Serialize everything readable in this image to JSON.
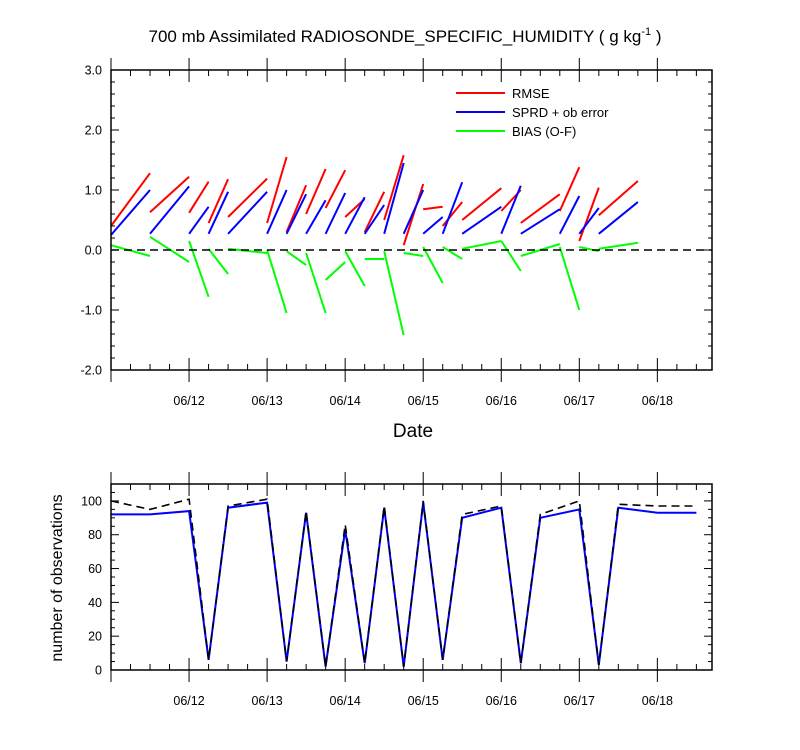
{
  "chart_data": [
    {
      "type": "line",
      "title": "700 mb Assimilated RADIOSONDE_SPECIFIC_HUMIDITY ( g kg",
      "title_superscript": "-1",
      "title_suffix": " )",
      "xlabel": "Date",
      "ylabel": "",
      "xlim": [
        -1.0,
        6.7
      ],
      "ylim": [
        -2.0,
        3.0
      ],
      "yticks": [
        {
          "value": 3.0,
          "label": "3.0"
        },
        {
          "value": 2.0,
          "label": "2.0"
        },
        {
          "value": 1.0,
          "label": "1.0"
        },
        {
          "value": 0.0,
          "label": "0.0"
        },
        {
          "value": -1.0,
          "label": "-1.0"
        },
        {
          "value": -2.0,
          "label": "-2.0"
        }
      ],
      "xticks": [
        {
          "value": 0,
          "label": "06/12"
        },
        {
          "value": 1,
          "label": "06/13"
        },
        {
          "value": 2,
          "label": "06/14"
        },
        {
          "value": 3,
          "label": "06/15"
        },
        {
          "value": 4,
          "label": "06/16"
        },
        {
          "value": 5,
          "label": "06/17"
        },
        {
          "value": 6,
          "label": "06/18"
        }
      ],
      "x": [
        -0.5,
        -0.25,
        0.0,
        0.25,
        0.5,
        0.75,
        1.0,
        1.25,
        1.5,
        1.75,
        2.0,
        2.25,
        2.5,
        2.75,
        3.0,
        3.25,
        3.5,
        3.75,
        4.0,
        4.25,
        4.5,
        4.75,
        5.0,
        5.25,
        5.5,
        5.75,
        6.0,
        6.25,
        6.5
      ],
      "series": [
        {
          "name": "RMSE",
          "color": "#ff0000",
          "segments": [
            [
              [
                -1.0,
                0.4
              ],
              [
                -0.5,
                1.28
              ]
            ],
            [
              [
                -0.5,
                0.63
              ],
              [
                0.0,
                1.22
              ]
            ],
            [
              [
                0.0,
                0.62
              ],
              [
                0.25,
                1.14
              ]
            ],
            [
              [
                0.25,
                0.45
              ],
              [
                0.5,
                1.18
              ]
            ],
            [
              [
                0.5,
                0.55
              ],
              [
                1.0,
                1.19
              ]
            ],
            [
              [
                1.0,
                0.45
              ],
              [
                1.25,
                1.55
              ]
            ],
            [
              [
                1.25,
                0.3
              ],
              [
                1.5,
                1.08
              ]
            ],
            [
              [
                1.5,
                0.6
              ],
              [
                1.75,
                1.35
              ]
            ],
            [
              [
                1.75,
                0.7
              ],
              [
                2.0,
                1.33
              ]
            ],
            [
              [
                2.0,
                0.55
              ],
              [
                2.25,
                0.85
              ]
            ],
            [
              [
                2.25,
                0.3
              ],
              [
                2.5,
                0.97
              ]
            ],
            [
              [
                2.5,
                0.5
              ],
              [
                2.75,
                1.58
              ]
            ],
            [
              [
                2.75,
                0.08
              ],
              [
                3.0,
                1.1
              ]
            ],
            [
              [
                3.0,
                0.68
              ],
              [
                3.25,
                0.72
              ]
            ],
            [
              [
                3.25,
                0.4
              ],
              [
                3.5,
                0.8
              ]
            ],
            [
              [
                3.5,
                0.5
              ],
              [
                4.0,
                1.03
              ]
            ],
            [
              [
                4.0,
                0.65
              ],
              [
                4.25,
                1.0
              ]
            ],
            [
              [
                4.25,
                0.45
              ],
              [
                4.75,
                0.93
              ]
            ],
            [
              [
                4.75,
                0.65
              ],
              [
                5.0,
                1.38
              ]
            ],
            [
              [
                5.0,
                0.15
              ],
              [
                5.25,
                1.04
              ]
            ],
            [
              [
                5.25,
                0.58
              ],
              [
                5.75,
                1.15
              ]
            ]
          ]
        },
        {
          "name": "SPRD + ob error",
          "color": "#0000ff",
          "segments": [
            [
              [
                -1.0,
                0.25
              ],
              [
                -0.5,
                1.0
              ]
            ],
            [
              [
                -0.5,
                0.27
              ],
              [
                0.0,
                1.06
              ]
            ],
            [
              [
                0.0,
                0.27
              ],
              [
                0.25,
                0.72
              ]
            ],
            [
              [
                0.25,
                0.27
              ],
              [
                0.5,
                0.97
              ]
            ],
            [
              [
                0.5,
                0.27
              ],
              [
                1.0,
                0.97
              ]
            ],
            [
              [
                1.0,
                0.27
              ],
              [
                1.25,
                1.0
              ]
            ],
            [
              [
                1.25,
                0.27
              ],
              [
                1.5,
                0.93
              ]
            ],
            [
              [
                1.5,
                0.27
              ],
              [
                1.75,
                0.83
              ]
            ],
            [
              [
                1.75,
                0.27
              ],
              [
                2.0,
                0.95
              ]
            ],
            [
              [
                2.0,
                0.27
              ],
              [
                2.25,
                0.88
              ]
            ],
            [
              [
                2.25,
                0.27
              ],
              [
                2.5,
                0.75
              ]
            ],
            [
              [
                2.5,
                0.27
              ],
              [
                2.75,
                1.45
              ]
            ],
            [
              [
                2.75,
                0.27
              ],
              [
                3.0,
                1.0
              ]
            ],
            [
              [
                3.0,
                0.27
              ],
              [
                3.25,
                0.55
              ]
            ],
            [
              [
                3.25,
                0.27
              ],
              [
                3.5,
                1.13
              ]
            ],
            [
              [
                3.5,
                0.27
              ],
              [
                4.0,
                0.72
              ]
            ],
            [
              [
                4.0,
                0.27
              ],
              [
                4.25,
                1.07
              ]
            ],
            [
              [
                4.25,
                0.27
              ],
              [
                4.75,
                0.68
              ]
            ],
            [
              [
                4.75,
                0.27
              ],
              [
                5.0,
                0.9
              ]
            ],
            [
              [
                5.0,
                0.27
              ],
              [
                5.25,
                0.7
              ]
            ],
            [
              [
                5.25,
                0.27
              ],
              [
                5.75,
                0.8
              ]
            ]
          ]
        },
        {
          "name": "BIAS (O-F)",
          "color": "#00ff00",
          "segments": [
            [
              [
                -1.0,
                0.08
              ],
              [
                -0.5,
                -0.1
              ]
            ],
            [
              [
                -0.5,
                0.22
              ],
              [
                0.0,
                -0.2
              ]
            ],
            [
              [
                0.0,
                0.15
              ],
              [
                0.25,
                -0.78
              ]
            ],
            [
              [
                0.25,
                0.02
              ],
              [
                0.5,
                -0.4
              ]
            ],
            [
              [
                0.5,
                0.02
              ],
              [
                1.0,
                -0.05
              ]
            ],
            [
              [
                1.0,
                0.0
              ],
              [
                1.25,
                -1.05
              ]
            ],
            [
              [
                1.25,
                -0.02
              ],
              [
                1.5,
                -0.25
              ]
            ],
            [
              [
                1.5,
                -0.05
              ],
              [
                1.75,
                -1.05
              ]
            ],
            [
              [
                1.75,
                -0.5
              ],
              [
                2.0,
                -0.2
              ]
            ],
            [
              [
                2.0,
                -0.02
              ],
              [
                2.25,
                -0.6
              ]
            ],
            [
              [
                2.25,
                -0.15
              ],
              [
                2.5,
                -0.15
              ]
            ],
            [
              [
                2.5,
                -0.02
              ],
              [
                2.75,
                -1.42
              ]
            ],
            [
              [
                2.75,
                -0.05
              ],
              [
                3.0,
                -0.1
              ]
            ],
            [
              [
                3.0,
                0.05
              ],
              [
                3.25,
                -0.55
              ]
            ],
            [
              [
                3.25,
                0.05
              ],
              [
                3.5,
                -0.15
              ]
            ],
            [
              [
                3.5,
                0.02
              ],
              [
                4.0,
                0.15
              ]
            ],
            [
              [
                4.0,
                0.15
              ],
              [
                4.25,
                -0.35
              ]
            ],
            [
              [
                4.25,
                -0.1
              ],
              [
                4.75,
                0.1
              ]
            ],
            [
              [
                4.75,
                0.05
              ],
              [
                5.0,
                -1.0
              ]
            ],
            [
              [
                5.0,
                0.05
              ],
              [
                5.25,
                -0.02
              ]
            ],
            [
              [
                5.25,
                0.02
              ],
              [
                5.75,
                0.12
              ]
            ]
          ]
        },
        {
          "name": "zero line",
          "color": "#000000",
          "dashed": true,
          "segments": [
            [
              [
                -1.0,
                0.0
              ],
              [
                6.7,
                0.0
              ]
            ]
          ]
        }
      ],
      "legend": [
        {
          "label": "RMSE",
          "color": "#ff0000"
        },
        {
          "label": "SPRD + ob error",
          "color": "#0000ff"
        },
        {
          "label": "BIAS (O-F)",
          "color": "#00ff00"
        }
      ],
      "legend_position": "top-right"
    },
    {
      "type": "line",
      "title": "",
      "xlabel": "",
      "ylabel": "number of observations",
      "xlim": [
        -1.0,
        6.7
      ],
      "ylim": [
        0,
        110
      ],
      "yticks": [
        {
          "value": 100,
          "label": "100"
        },
        {
          "value": 80,
          "label": "80"
        },
        {
          "value": 60,
          "label": "60"
        },
        {
          "value": 40,
          "label": "40"
        },
        {
          "value": 20,
          "label": "20"
        },
        {
          "value": 0,
          "label": "0"
        }
      ],
      "xticks": [
        {
          "value": 0,
          "label": "06/12"
        },
        {
          "value": 1,
          "label": "06/13"
        },
        {
          "value": 2,
          "label": "06/14"
        },
        {
          "value": 3,
          "label": "06/15"
        },
        {
          "value": 4,
          "label": "06/16"
        },
        {
          "value": 5,
          "label": "06/17"
        },
        {
          "value": 6,
          "label": "06/18"
        }
      ],
      "series": [
        {
          "name": "used observations",
          "color": "#0000ff",
          "dashed": false,
          "x": [
            -1.0,
            -0.5,
            0.0,
            0.25,
            0.5,
            1.0,
            1.25,
            1.5,
            1.75,
            2.0,
            2.25,
            2.5,
            2.75,
            3.0,
            3.25,
            3.5,
            4.0,
            4.25,
            4.5,
            5.0,
            5.25,
            5.5,
            6.0,
            6.5
          ],
          "values": [
            92,
            92,
            94,
            6,
            96,
            99,
            5,
            93,
            2,
            83,
            4,
            96,
            2,
            99,
            6,
            90,
            96,
            4,
            90,
            95,
            3,
            96,
            93,
            93
          ]
        },
        {
          "name": "possible observations",
          "color": "#000000",
          "dashed": true,
          "x": [
            -1.0,
            -0.5,
            0.0,
            0.25,
            0.5,
            1.0,
            1.25,
            1.5,
            1.75,
            2.0,
            2.25,
            2.5,
            2.75,
            3.0,
            3.25,
            3.5,
            4.0,
            4.25,
            4.5,
            5.0,
            5.25,
            5.5,
            6.0,
            6.5
          ],
          "values": [
            100,
            95,
            101,
            6,
            97,
            101,
            5,
            94,
            2,
            86,
            4,
            97,
            2,
            100,
            6,
            92,
            97,
            4,
            92,
            100,
            3,
            98,
            97,
            97
          ]
        }
      ]
    }
  ]
}
